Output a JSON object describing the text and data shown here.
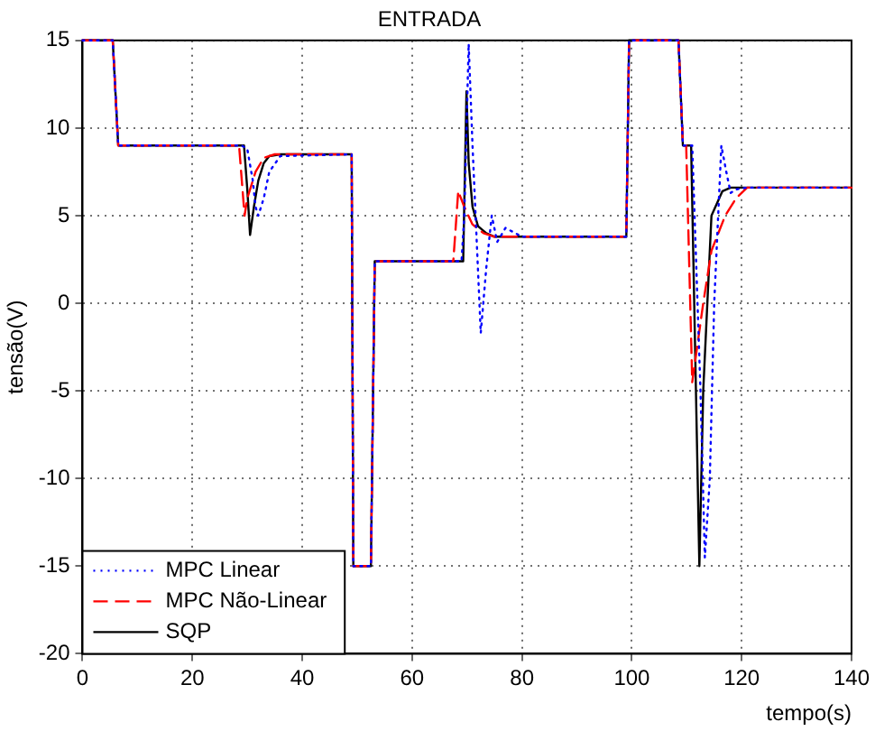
{
  "chart_data": {
    "type": "line",
    "title": "ENTRADA",
    "xlabel": "tempo(s)",
    "ylabel": "tensão(V)",
    "xlim": [
      0,
      140
    ],
    "xticks": [
      0,
      20,
      40,
      60,
      80,
      100,
      120,
      140
    ],
    "ylim": [
      -20,
      15
    ],
    "yticks": [
      -20,
      -15,
      -10,
      -5,
      0,
      5,
      10,
      15
    ],
    "grid": true,
    "legend": "bottom left",
    "marker": "none",
    "series": [
      {
        "name": "MPC Linear",
        "color": "#0000ff",
        "line_style": "dotted",
        "x": [
          0,
          5.5,
          6.5,
          29,
          30,
          31,
          31.5,
          32,
          33,
          34,
          36,
          49,
          49.3,
          52.5,
          53.2,
          69,
          69.5,
          70.3,
          71,
          72.5,
          73.5,
          74.5,
          75.5,
          77,
          80,
          99,
          99.5,
          108.5,
          109.3,
          111,
          112.5,
          113.3,
          114.2,
          115,
          116.3,
          117.2,
          118,
          119,
          121,
          140
        ],
        "values": [
          15,
          15,
          9,
          9,
          8.8,
          7,
          5.5,
          5,
          6,
          7.5,
          8.4,
          8.5,
          -15,
          -15,
          2.4,
          2.4,
          5,
          14.8,
          9,
          -1.7,
          2,
          5,
          3.5,
          4.3,
          3.8,
          3.8,
          15,
          15,
          9,
          9,
          -5,
          -14.5,
          -10,
          0,
          9,
          7.5,
          6.3,
          6.5,
          6.6,
          6.6
        ]
      },
      {
        "name": "MPC Não-Linear",
        "color": "#ff0000",
        "line_style": "dashed",
        "x": [
          0,
          5.5,
          6.5,
          28.5,
          29,
          29.5,
          30,
          31.5,
          33,
          35,
          49,
          49.3,
          52.5,
          53.2,
          67.5,
          68.4,
          69.5,
          71,
          73,
          75,
          99,
          99.5,
          108.5,
          109.3,
          109.9,
          111,
          113,
          114.5,
          117,
          119,
          121,
          140
        ],
        "values": [
          15,
          15,
          9,
          9,
          7,
          5,
          6,
          7.5,
          8.3,
          8.5,
          8.5,
          -15,
          -15,
          2.4,
          2.4,
          6.4,
          5.5,
          4.5,
          4,
          3.8,
          3.8,
          15,
          15,
          9,
          9,
          -4.5,
          0,
          3,
          5,
          6,
          6.6,
          6.6
        ]
      },
      {
        "name": "SQP",
        "color": "#000000",
        "line_style": "solid",
        "x": [
          0,
          5.5,
          6.5,
          29.4,
          30,
          30.5,
          31.2,
          32,
          33,
          34,
          36,
          49,
          49.3,
          52.5,
          53.2,
          69.3,
          69.9,
          70.3,
          71,
          72,
          73.5,
          75,
          99,
          99.5,
          108.5,
          109.3,
          110.8,
          112.3,
          113,
          114.5,
          116.5,
          118,
          140
        ],
        "values": [
          15,
          15,
          9,
          9,
          6.5,
          3.9,
          5.5,
          7,
          8,
          8.4,
          8.5,
          8.5,
          -15,
          -15,
          2.4,
          2.4,
          12.1,
          8,
          5.5,
          4.4,
          4,
          3.8,
          3.8,
          15,
          15,
          9,
          9,
          -15,
          -5,
          5,
          6.4,
          6.6,
          6.6
        ]
      }
    ]
  }
}
